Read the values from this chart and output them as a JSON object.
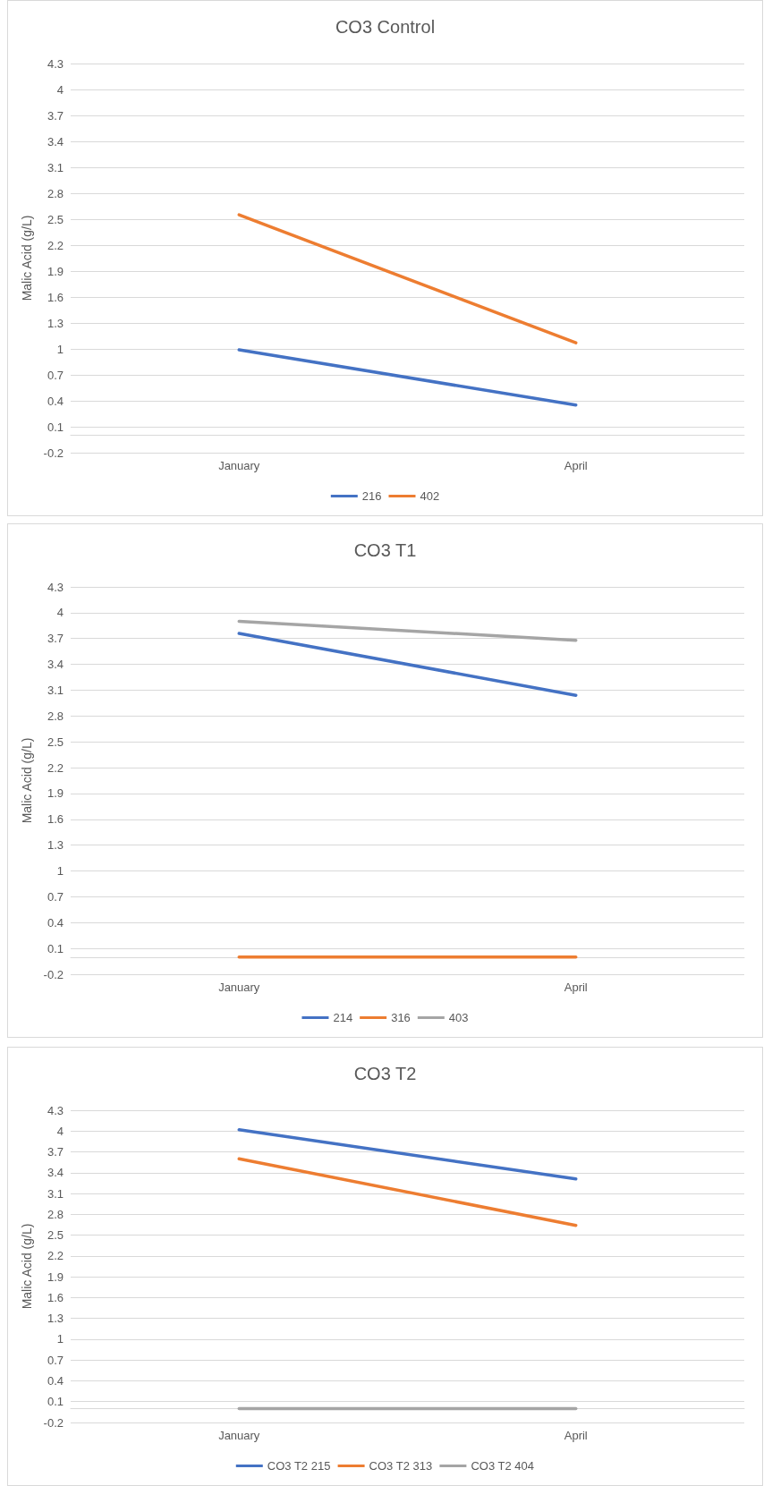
{
  "chart_data": [
    {
      "type": "line",
      "title": "CO3 Control",
      "ylabel": "Malic Acid (g/L)",
      "categories": [
        "January",
        "April"
      ],
      "ylim": [
        -0.2,
        4.3
      ],
      "yticks": [
        -0.2,
        0.1,
        0.4,
        0.7,
        1,
        1.3,
        1.6,
        1.9,
        2.2,
        2.5,
        2.8,
        3.1,
        3.4,
        3.7,
        4,
        4.3
      ],
      "grid": "y",
      "legend": "bottom",
      "marker": "none",
      "series": [
        {
          "name": "216",
          "color": "#4472c4",
          "values": [
            0.99,
            0.35
          ]
        },
        {
          "name": "402",
          "color": "#ed7d31",
          "values": [
            2.55,
            1.07
          ]
        }
      ]
    },
    {
      "type": "line",
      "title": "CO3 T1",
      "ylabel": "Malic Acid (g/L)",
      "categories": [
        "January",
        "April"
      ],
      "ylim": [
        -0.2,
        4.3
      ],
      "yticks": [
        -0.2,
        0.1,
        0.4,
        0.7,
        1,
        1.3,
        1.6,
        1.9,
        2.2,
        2.5,
        2.8,
        3.1,
        3.4,
        3.7,
        4,
        4.3
      ],
      "grid": "y",
      "legend": "bottom",
      "marker": "none",
      "series": [
        {
          "name": "214",
          "color": "#4472c4",
          "values": [
            3.76,
            3.04
          ]
        },
        {
          "name": "316",
          "color": "#ed7d31",
          "values": [
            0,
            0
          ]
        },
        {
          "name": "403",
          "color": "#a5a5a5",
          "values": [
            3.9,
            3.68
          ]
        }
      ]
    },
    {
      "type": "line",
      "title": "CO3 T2",
      "ylabel": "Malic Acid (g/L)",
      "categories": [
        "January",
        "April"
      ],
      "ylim": [
        -0.2,
        4.3
      ],
      "yticks": [
        -0.2,
        0.1,
        0.4,
        0.7,
        1,
        1.3,
        1.6,
        1.9,
        2.2,
        2.5,
        2.8,
        3.1,
        3.4,
        3.7,
        4,
        4.3
      ],
      "grid": "y",
      "legend": "bottom",
      "marker": "none",
      "series": [
        {
          "name": "CO3 T2 215",
          "color": "#4472c4",
          "values": [
            4.02,
            3.31
          ]
        },
        {
          "name": "CO3 T2 313",
          "color": "#ed7d31",
          "values": [
            3.6,
            2.64
          ]
        },
        {
          "name": "CO3 T2 404",
          "color": "#a5a5a5",
          "values": [
            0,
            0
          ]
        }
      ]
    }
  ]
}
